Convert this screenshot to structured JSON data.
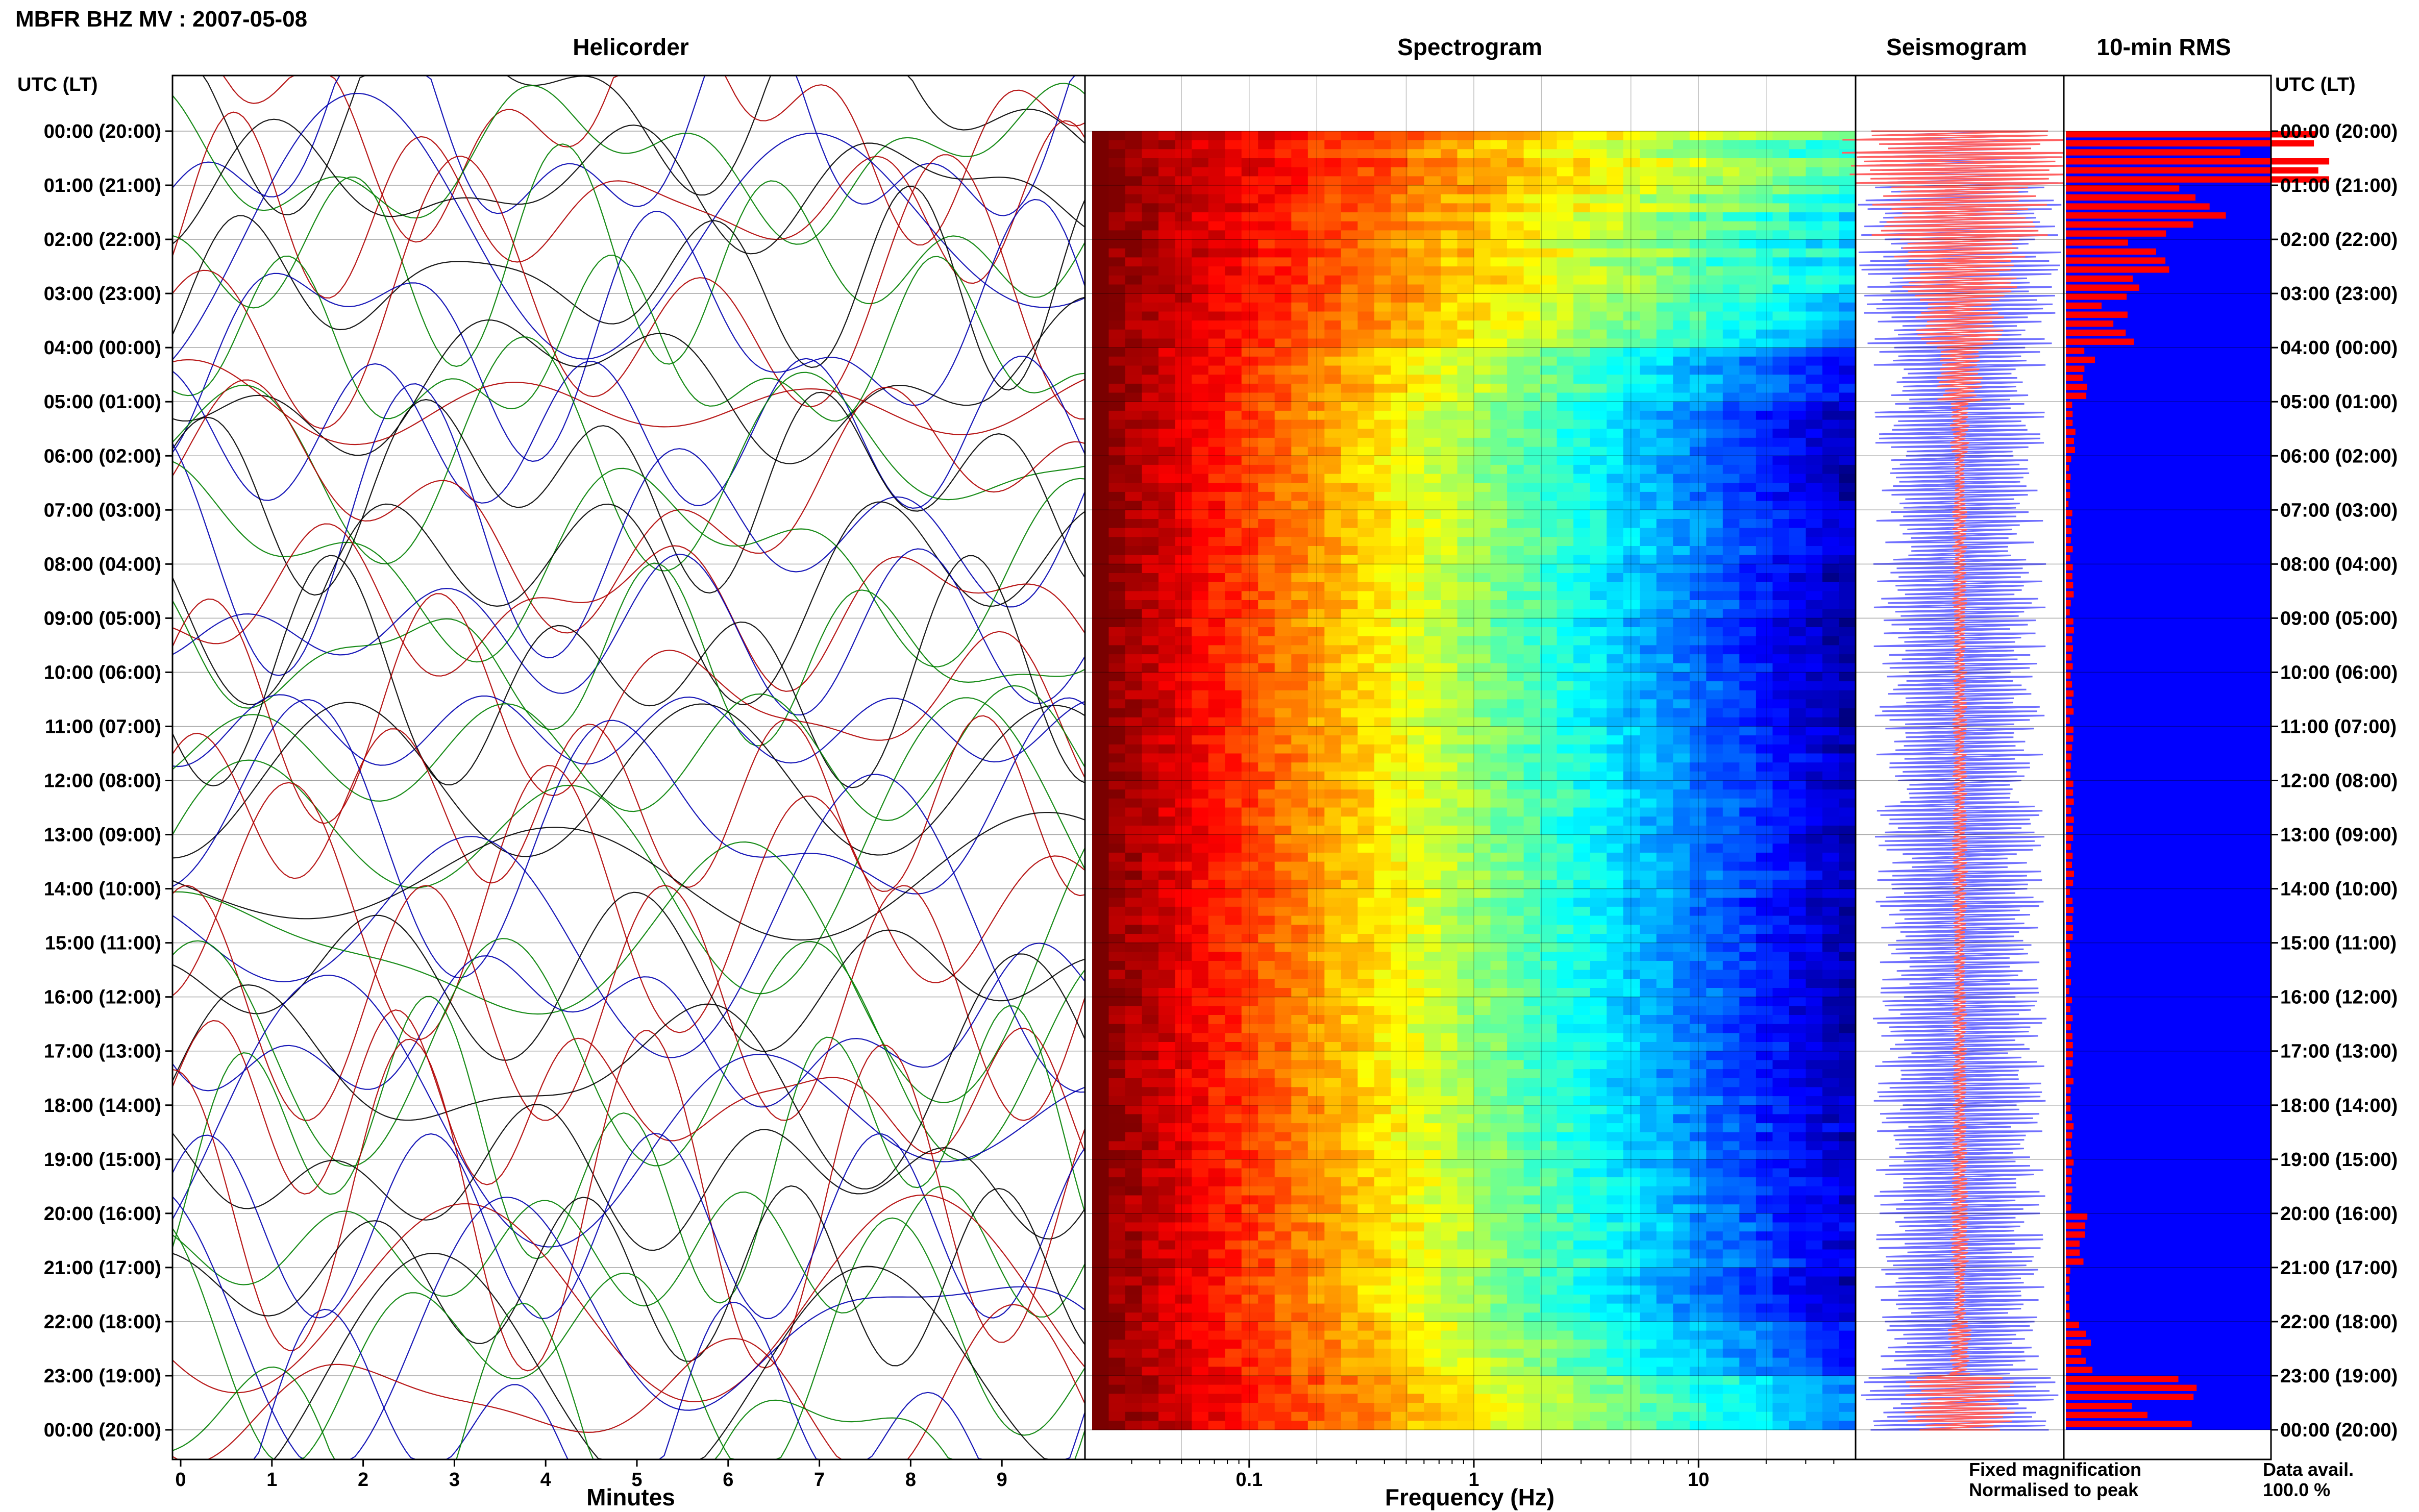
{
  "title": "MBFR BHZ MV : 2007-05-08",
  "panels": {
    "helicorder": "Helicorder",
    "spectrogram": "Spectrogram",
    "seismogram": "Seismogram",
    "rms": "10-min RMS"
  },
  "axis_header": "UTC (LT)",
  "xlabels": {
    "helicorder": "Minutes",
    "spectrogram": "Frequency (Hz)"
  },
  "legend": {
    "fixed": "Fixed magnification",
    "normalised": "Normalised to peak",
    "fixed_color": "#0000ff",
    "normalised_color": "#ff2020"
  },
  "data_avail_label": "Data avail.",
  "data_avail_value": "100.0 %",
  "colors": {
    "helicorder_traces": [
      "#000000",
      "#b00000",
      "#0000b0",
      "#008000"
    ],
    "rms_fixed": "#0000ff",
    "rms_normalised": "#ff0000",
    "seismo_fixed": "#7070ff",
    "seismo_normalised": "#ff6060"
  },
  "chart_data": [
    {
      "type": "line",
      "name": "Helicorder",
      "xlabel": "Minutes",
      "xlim": [
        0,
        10
      ],
      "xticks": [
        "0",
        "1",
        "2",
        "3",
        "4",
        "5",
        "6",
        "7",
        "8",
        "9"
      ],
      "rows": [
        "00:00 (20:00)",
        "01:00 (21:00)",
        "02:00 (22:00)",
        "03:00 (23:00)",
        "04:00 (00:00)",
        "05:00 (01:00)",
        "06:00 (02:00)",
        "07:00 (03:00)",
        "08:00 (04:00)",
        "09:00 (05:00)",
        "10:00 (06:00)",
        "11:00 (07:00)",
        "12:00 (08:00)",
        "13:00 (09:00)",
        "14:00 (10:00)",
        "15:00 (11:00)",
        "16:00 (12:00)",
        "17:00 (13:00)",
        "18:00 (14:00)",
        "19:00 (15:00)",
        "20:00 (16:00)",
        "21:00 (17:00)",
        "22:00 (18:00)",
        "23:00 (19:00)",
        "00:00 (20:00)"
      ]
    },
    {
      "type": "heatmap",
      "name": "Spectrogram",
      "xlabel": "Frequency (Hz)",
      "xscale": "log",
      "xlim": [
        0.02,
        50
      ],
      "xticks": [
        "0.1",
        "1",
        "10"
      ],
      "hour_energy": [
        1.0,
        0.92,
        0.85,
        0.75,
        0.5,
        0.38,
        0.38,
        0.4,
        0.36,
        0.34,
        0.36,
        0.38,
        0.4,
        0.4,
        0.38,
        0.37,
        0.37,
        0.37,
        0.4,
        0.42,
        0.45,
        0.4,
        0.55,
        0.75
      ]
    },
    {
      "type": "line",
      "name": "Seismogram",
      "series": [
        "Fixed magnification",
        "Normalised to peak"
      ],
      "hour_amplitude": [
        0.98,
        0.75,
        0.55,
        0.4,
        0.2,
        0.08,
        0.05,
        0.06,
        0.06,
        0.05,
        0.06,
        0.06,
        0.06,
        0.07,
        0.06,
        0.05,
        0.06,
        0.06,
        0.06,
        0.07,
        0.08,
        0.05,
        0.1,
        0.45
      ]
    },
    {
      "type": "bar",
      "name": "10-min RMS",
      "hour_rms": [
        1.0,
        0.65,
        0.4,
        0.28,
        0.12,
        0.04,
        0.02,
        0.03,
        0.03,
        0.03,
        0.03,
        0.03,
        0.03,
        0.04,
        0.03,
        0.02,
        0.03,
        0.03,
        0.03,
        0.04,
        0.08,
        0.02,
        0.1,
        0.5
      ]
    }
  ]
}
